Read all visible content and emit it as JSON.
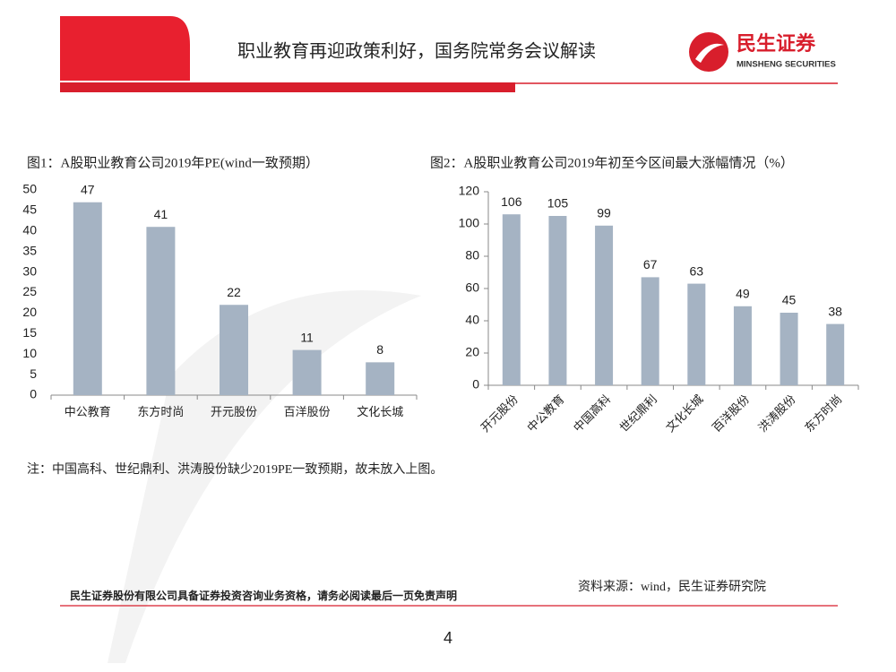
{
  "header": {
    "title": "职业教育再迎政策利好，国务院常务会议解读",
    "logo_cn": "民生证券",
    "logo_en": "MINSHENG SECURITIES"
  },
  "chart_data": [
    {
      "type": "bar",
      "title": "图1：A股职业教育公司2019年PE(wind一致预期）",
      "categories": [
        "中公教育",
        "东方时尚",
        "开元股份",
        "百洋股份",
        "文化长城"
      ],
      "values": [
        47,
        41,
        22,
        11,
        8
      ],
      "color": "#a5b3c3",
      "ylim": [
        0,
        50
      ],
      "yticks": [
        0,
        5,
        10,
        15,
        20,
        25,
        30,
        35,
        40,
        45,
        50
      ]
    },
    {
      "type": "bar",
      "title": "图2：A股职业教育公司2019年初至今区间最大涨幅情况（%）",
      "categories": [
        "开元股份",
        "中公教育",
        "中国高科",
        "世纪鼎利",
        "文化长城",
        "百洋股份",
        "洪涛股份",
        "东方时尚"
      ],
      "values": [
        106,
        105,
        99,
        67,
        63,
        49,
        45,
        38
      ],
      "color": "#a5b3c3",
      "ylim": [
        0,
        120
      ],
      "yticks": [
        0,
        20,
        40,
        60,
        80,
        100,
        120
      ]
    }
  ],
  "note": "注：中国高科、世纪鼎利、洪涛股份缺少2019PE一致预期，故未放入上图。",
  "source": "资料来源：wind，民生证券研究院",
  "footer": {
    "disclaimer": "民生证券股份有限公司具备证券投资咨询业务资格，请务必阅读最后一页免责声明",
    "page": "4"
  }
}
